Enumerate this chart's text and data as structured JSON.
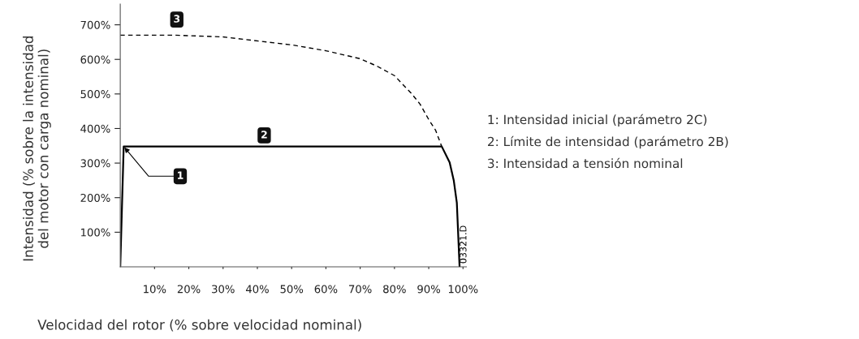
{
  "chart_data": {
    "type": "line",
    "xlabel": "Velocidad del rotor (% sobre velocidad nominal)",
    "ylabel": "Intensidad (% sobre la intensidad\ndel motor con carga nominal)",
    "xlim": [
      0,
      101
    ],
    "ylim": [
      0,
      760
    ],
    "xticks": [
      {
        "value": 10,
        "label": "10%"
      },
      {
        "value": 20,
        "label": "20%"
      },
      {
        "value": 30,
        "label": "30%"
      },
      {
        "value": 40,
        "label": "40%"
      },
      {
        "value": 50,
        "label": "50%"
      },
      {
        "value": 60,
        "label": "60%"
      },
      {
        "value": 70,
        "label": "70%"
      },
      {
        "value": 80,
        "label": "80%"
      },
      {
        "value": 90,
        "label": "90%"
      },
      {
        "value": 100,
        "label": "100%"
      }
    ],
    "yticks": [
      {
        "value": 100,
        "label": "100%"
      },
      {
        "value": 200,
        "label": "200%"
      },
      {
        "value": 300,
        "label": "300%"
      },
      {
        "value": 400,
        "label": "400%"
      },
      {
        "value": 500,
        "label": "500%"
      },
      {
        "value": 600,
        "label": "600%"
      },
      {
        "value": 700,
        "label": "700%"
      }
    ],
    "grid": false,
    "legend": false,
    "marker": "none",
    "series": [
      {
        "color": "#000000",
        "line_style": "solid",
        "x": [
          0,
          1,
          93.8,
          96.1,
          97.3,
          98.2,
          99
        ],
        "values": [
          0,
          348,
          348,
          302,
          250,
          185,
          0
        ]
      },
      {
        "color": "#000000",
        "line_style": "dashed",
        "x": [
          0,
          16,
          30,
          50,
          60,
          70,
          75,
          80,
          85,
          87.5,
          90,
          92,
          93.8
        ],
        "values": [
          670,
          670,
          665,
          642,
          625,
          602,
          580,
          553,
          501,
          470,
          426,
          395,
          348
        ]
      }
    ],
    "annotations": [
      {
        "text": "1",
        "x": 17.5,
        "y": 262
      },
      {
        "text": "2",
        "x": 42,
        "y": 380
      },
      {
        "text": "3",
        "x": 16.5,
        "y": 715
      },
      "1: Intensidad inicial (parámetro 2C)",
      "2: Límite de intensidad (parámetro 2B)",
      "3: Intensidad a tensión nominal",
      "03321.D"
    ]
  }
}
